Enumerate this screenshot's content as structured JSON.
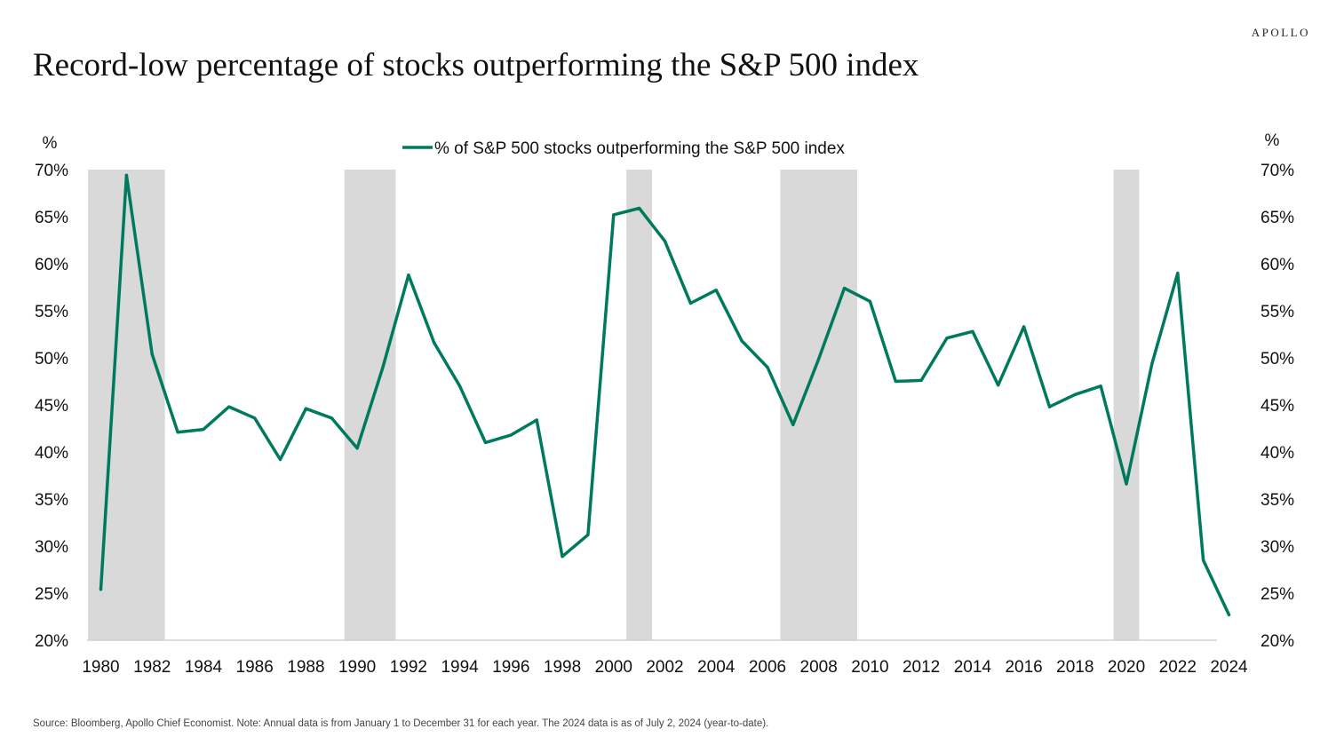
{
  "header": {
    "brand": "APOLLO",
    "title": "Record-low percentage of stocks outperforming the S&P 500 index"
  },
  "footer": {
    "source": "Source: Bloomberg, Apollo Chief Economist. Note: Annual data is from January 1 to December 31 for each year. The 2024 data is as of July 2, 2024 (year-to-date)."
  },
  "colors": {
    "line": "#007a5e",
    "recession_band": "#d9d9d9",
    "text": "#111111"
  },
  "chart_data": {
    "type": "line",
    "title": "Record-low percentage of stocks outperforming the S&P 500 index",
    "y_unit_left": "%",
    "y_unit_right": "%",
    "ylim": [
      20,
      70
    ],
    "y_ticks": [
      70,
      65,
      60,
      55,
      50,
      45,
      40,
      35,
      30,
      25,
      20
    ],
    "y_tick_labels": [
      "70%",
      "65%",
      "60%",
      "55%",
      "50%",
      "45%",
      "40%",
      "35%",
      "30%",
      "25%",
      "20%"
    ],
    "xlim": [
      1980,
      2024
    ],
    "x_ticks": [
      1980,
      1982,
      1984,
      1986,
      1988,
      1990,
      1992,
      1994,
      1996,
      1998,
      2000,
      2002,
      2004,
      2006,
      2008,
      2010,
      2012,
      2014,
      2016,
      2018,
      2020,
      2022,
      2024
    ],
    "x_tick_labels": [
      "1980",
      "1982",
      "1984",
      "1986",
      "1988",
      "1990",
      "1992",
      "1994",
      "1996",
      "1998",
      "2000",
      "2002",
      "2004",
      "2006",
      "2008",
      "2010",
      "2012",
      "2014",
      "2016",
      "2018",
      "2020",
      "2022",
      "2024"
    ],
    "grid": false,
    "legend_position": "top-center",
    "recession_bands": [
      [
        1979.5,
        1982.5
      ],
      [
        1989.5,
        1991.5
      ],
      [
        2000.5,
        2001.5
      ],
      [
        2006.5,
        2009.5
      ],
      [
        2019.5,
        2020.5
      ]
    ],
    "series": [
      {
        "name": "% of S&P 500 stocks outperforming the S&P 500 index",
        "x": [
          1980,
          1981,
          1982,
          1983,
          1984,
          1985,
          1986,
          1987,
          1988,
          1989,
          1990,
          1991,
          1992,
          1993,
          1994,
          1995,
          1996,
          1997,
          1998,
          1999,
          2000,
          2001,
          2002,
          2003,
          2004,
          2005,
          2006,
          2007,
          2008,
          2009,
          2010,
          2011,
          2012,
          2013,
          2014,
          2015,
          2016,
          2017,
          2018,
          2019,
          2020,
          2021,
          2022,
          2023,
          2024
        ],
        "values": [
          25.4,
          69.4,
          50.4,
          42.1,
          42.4,
          44.8,
          43.6,
          39.2,
          44.6,
          43.6,
          40.4,
          49.0,
          58.8,
          51.6,
          47.0,
          41.0,
          41.8,
          43.4,
          28.9,
          31.2,
          65.2,
          65.9,
          62.4,
          55.8,
          57.2,
          51.8,
          49.0,
          42.9,
          49.9,
          57.4,
          56.0,
          47.5,
          47.6,
          52.1,
          52.8,
          47.1,
          53.3,
          44.8,
          46.1,
          47.0,
          36.6,
          49.4,
          59.0,
          28.5,
          22.7
        ]
      }
    ]
  }
}
